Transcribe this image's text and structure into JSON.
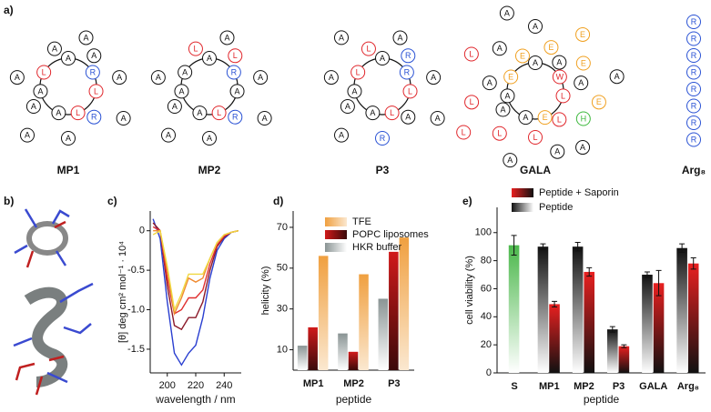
{
  "panel_labels": [
    "a)",
    "b)",
    "c)",
    "d)",
    "e)"
  ],
  "wheels": [
    {
      "name": "MP1",
      "residues": [
        "R",
        "L",
        "A",
        "A",
        "L",
        "A",
        "L",
        "A",
        "R",
        "A",
        "A",
        "A",
        "A",
        "A",
        "A",
        "A",
        "A"
      ]
    },
    {
      "name": "MP2",
      "residues": [
        "R",
        "L",
        "A",
        "A",
        "A",
        "A",
        "A",
        "L",
        "R",
        "A",
        "L",
        "A",
        "A",
        "A",
        "A",
        "A",
        "A"
      ]
    },
    {
      "name": "P3",
      "residues": [
        "R",
        "L",
        "A",
        "A",
        "L",
        "A",
        "L",
        "R",
        "A",
        "A",
        "L",
        "A",
        "R",
        "A",
        "A",
        "A",
        "A",
        "A"
      ]
    },
    {
      "name": "GALA",
      "residues": [
        "W",
        "E",
        "A",
        "A",
        "L",
        "A",
        "E",
        "A",
        "L",
        "A",
        "E",
        "A",
        "L",
        "A",
        "E",
        "H",
        "L",
        "A",
        "E",
        "A",
        "L",
        "A",
        "E",
        "A",
        "L",
        "E",
        "A",
        "L",
        "A",
        "A"
      ]
    }
  ],
  "arg8": {
    "name": "Arg₈",
    "residues": [
      "R",
      "R",
      "R",
      "R",
      "R",
      "R",
      "R",
      "R"
    ]
  },
  "residue_colors": {
    "L": "#e0262b",
    "W": "#e0262b",
    "R": "#2a52d4",
    "E": "#f0a020",
    "H": "#3cb83c",
    "A": "#111111"
  },
  "chart_data": [
    {
      "type": "line",
      "xlabel": "wavelength / nm",
      "ylabel": "[θ] deg cm² mol⁻¹ · 10⁴",
      "x": [
        190,
        195,
        200,
        205,
        210,
        215,
        220,
        225,
        230,
        235,
        240,
        245,
        250
      ],
      "xlim": [
        188,
        252
      ],
      "xticks": [
        200,
        220,
        240
      ],
      "ylim": [
        -1.8,
        0.25
      ],
      "yticks": [
        0,
        -0.5,
        {
          "value": -1.0,
          "label": "-1.0"
        },
        -1.5
      ],
      "series": [
        {
          "color": "#2a3fd0",
          "values": [
            0.15,
            -0.1,
            -0.9,
            -1.55,
            -1.7,
            -1.55,
            -1.45,
            -1.1,
            -0.6,
            -0.25,
            -0.1,
            -0.02,
            0
          ]
        },
        {
          "color": "#8b1a2a",
          "values": [
            0.1,
            0,
            -0.7,
            -1.2,
            -1.25,
            -1.1,
            -1.1,
            -0.9,
            -0.5,
            -0.2,
            -0.08,
            -0.02,
            0
          ]
        },
        {
          "color": "#e03030",
          "values": [
            0.05,
            0,
            -0.6,
            -1.05,
            -1.0,
            -0.85,
            -0.85,
            -0.75,
            -0.42,
            -0.18,
            -0.07,
            -0.02,
            0
          ]
        },
        {
          "color": "#f08a30",
          "values": [
            0,
            0,
            -0.5,
            -1.05,
            -0.85,
            -0.6,
            -0.65,
            -0.6,
            -0.35,
            -0.15,
            -0.05,
            -0.02,
            0
          ]
        },
        {
          "color": "#f0d840",
          "values": [
            -0.05,
            0,
            -0.45,
            -1.0,
            -0.8,
            -0.55,
            -0.55,
            -0.55,
            -0.35,
            -0.15,
            -0.05,
            -0.02,
            0
          ]
        }
      ]
    },
    {
      "type": "bar",
      "xlabel": "peptide",
      "ylabel": "helicity  (%)",
      "legend": "upper right",
      "categories": [
        "MP1",
        "MP2",
        "P3"
      ],
      "ylim": [
        0,
        78
      ],
      "yticks": [
        10,
        30,
        50,
        70
      ],
      "series": [
        {
          "name": "HKR buffer",
          "color": "#8a9494",
          "color2": "#ffffff",
          "values": [
            12,
            18,
            35
          ]
        },
        {
          "name": "POPC liposomes",
          "color": "#d01a1a",
          "color2": "#3a0a0a",
          "values": [
            21,
            9,
            58
          ]
        },
        {
          "name": "TFE",
          "color": "#f0a040",
          "color2": "#fbe8d0",
          "values": [
            56,
            47,
            65
          ]
        }
      ]
    },
    {
      "type": "bar",
      "xlabel": "peptide",
      "ylabel": "cell viability (%)",
      "legend": "above",
      "categories": [
        "S",
        "MP1",
        "MP2",
        "P3",
        "GALA",
        "Arg₈"
      ],
      "ylim": [
        0,
        118
      ],
      "yticks": [
        0,
        20,
        40,
        60,
        80,
        100
      ],
      "series": [
        {
          "color": "#4cb84c",
          "color2": "#ffffff",
          "values": [
            91,
            null,
            null,
            null,
            null,
            null
          ],
          "errors": [
            7,
            null,
            null,
            null,
            null,
            null
          ]
        },
        {
          "name": "Peptide",
          "color": "#111111",
          "color2": "#ffffff",
          "values": [
            null,
            90,
            90,
            31,
            70,
            89
          ],
          "errors": [
            null,
            2,
            3,
            2,
            2,
            3
          ]
        },
        {
          "name": "Peptide + Saporin",
          "color": "#e82020",
          "color2": "#111111",
          "values": [
            null,
            49,
            72,
            19,
            64,
            78
          ],
          "errors": [
            null,
            2,
            3,
            1,
            9,
            4
          ]
        }
      ]
    }
  ]
}
